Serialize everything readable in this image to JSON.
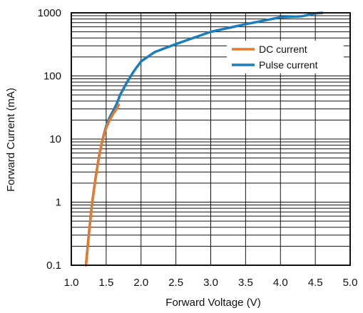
{
  "chart_data": {
    "type": "line",
    "title": "",
    "xlabel": "Forward Voltage (V)",
    "ylabel": "Forward Current (mA)",
    "xlim": [
      1.0,
      5.0
    ],
    "ylim": [
      0.1,
      1000
    ],
    "yscale": "log",
    "grid": true,
    "legend_position": "top-right",
    "x_ticks": [
      "1.0",
      "1.5",
      "2.0",
      "2.5",
      "3.0",
      "3.5",
      "4.0",
      "4.5",
      "5.0"
    ],
    "y_ticks": [
      "0.1",
      "1",
      "10",
      "100",
      "1000"
    ],
    "series": [
      {
        "name": "Pulse current",
        "color": "#1a7dbf",
        "x": [
          1.21,
          1.25,
          1.3,
          1.35,
          1.4,
          1.45,
          1.5,
          1.55,
          1.6,
          1.65,
          1.7,
          1.8,
          1.9,
          2.0,
          2.2,
          2.5,
          3.0,
          3.5,
          4.0,
          4.3,
          4.5,
          4.6
        ],
        "y": [
          0.1,
          0.3,
          1,
          2.5,
          5.5,
          10,
          16,
          22,
          28,
          36,
          50,
          80,
          120,
          170,
          240,
          320,
          500,
          660,
          850,
          880,
          980,
          1000
        ]
      },
      {
        "name": "DC current",
        "color": "#e8782a",
        "x": [
          1.21,
          1.25,
          1.3,
          1.35,
          1.4,
          1.45,
          1.5,
          1.55,
          1.6,
          1.65,
          1.68
        ],
        "y": [
          0.1,
          0.3,
          1,
          2.5,
          5.5,
          10,
          15,
          20,
          25,
          30,
          35
        ]
      }
    ]
  }
}
